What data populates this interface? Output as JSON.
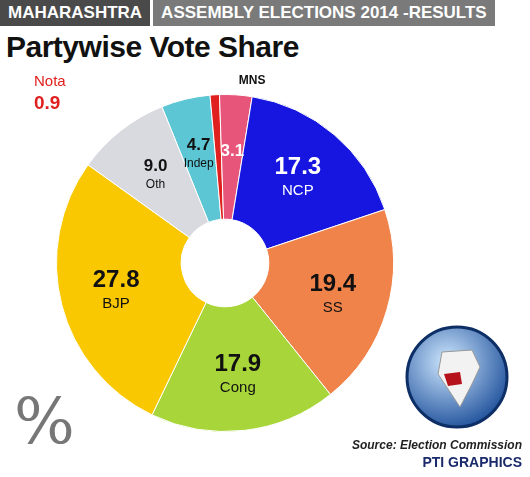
{
  "chart_data": {
    "type": "doughnut",
    "header": [
      "MAHARASHTRA",
      "ASSEMBLY ELECTIONS 2014 -RESULTS"
    ],
    "title": "Partywise Vote Share",
    "categories": [
      "Indep",
      "Nota",
      "MNS",
      "NCP",
      "SS",
      "Cong",
      "BJP",
      "Oth"
    ],
    "values": [
      4.7,
      0.9,
      3.1,
      17.3,
      19.4,
      17.9,
      27.8,
      9.0
    ],
    "value_labels": [
      "4.7",
      "0.9",
      "3.1",
      "17.3",
      "19.4",
      "17.9",
      "27.8",
      "9.0"
    ],
    "colors": [
      "#5cc6d4",
      "#e0201e",
      "#e8557a",
      "#1616e0",
      "#f0834a",
      "#a8d63a",
      "#f9c800",
      "#d9d9e0"
    ],
    "data_labels": true,
    "annotations": [
      "%",
      "Source: Election Commission",
      "PTI GRAPHICS"
    ]
  }
}
